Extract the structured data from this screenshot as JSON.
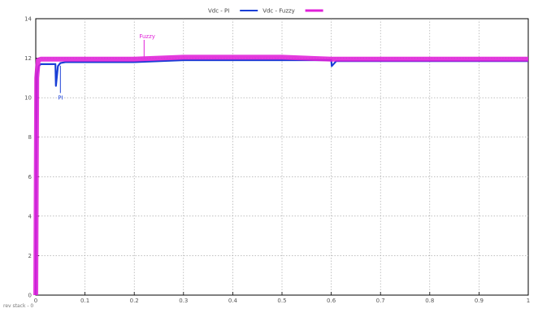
{
  "chart_data": {
    "type": "line",
    "xlim": [
      0,
      1
    ],
    "ylim": [
      0,
      14
    ],
    "x_ticks": [
      0,
      0.1,
      0.2,
      0.3,
      0.4,
      0.5,
      0.6,
      0.7,
      0.8,
      0.9,
      1
    ],
    "y_ticks": [
      0,
      2,
      4,
      6,
      8,
      10,
      12,
      14
    ],
    "x_tick_labels": [
      "0",
      "0.1",
      "0.2",
      "0.3",
      "0.4",
      "0.5",
      "0.6",
      "0.7",
      "0.8",
      "0.9",
      "1"
    ],
    "y_tick_labels": [
      "0",
      "2",
      "4",
      "6",
      "8",
      "10",
      "12",
      "14"
    ],
    "grid": true,
    "legend_position": "top-center",
    "series": [
      {
        "name": "Vdc - PI",
        "color": "#1a3fd6",
        "x": [
          0,
          0.001,
          0.003,
          0.006,
          0.01,
          0.02,
          0.03,
          0.04,
          0.041,
          0.045,
          0.05,
          0.06,
          0.1,
          0.2,
          0.3,
          0.4,
          0.5,
          0.6,
          0.601,
          0.61,
          0.7,
          0.8,
          0.9,
          1
        ],
        "y": [
          0,
          8.2,
          11.2,
          11.6,
          11.7,
          11.7,
          11.7,
          11.7,
          10.6,
          11.6,
          11.75,
          11.8,
          11.8,
          11.8,
          11.9,
          11.9,
          11.9,
          11.9,
          11.6,
          11.85,
          11.85,
          11.85,
          11.85,
          11.85
        ]
      },
      {
        "name": "Vdc - Fuzzy",
        "color": "#e020d8",
        "x": [
          0,
          0.002,
          0.005,
          0.01,
          0.05,
          0.1,
          0.2,
          0.3,
          0.4,
          0.5,
          0.6,
          0.7,
          0.8,
          0.9,
          1
        ],
        "y": [
          0,
          11.0,
          11.9,
          11.95,
          11.95,
          11.95,
          11.95,
          12.05,
          12.05,
          12.05,
          11.95,
          11.95,
          11.95,
          11.95,
          11.95
        ]
      }
    ],
    "annotations": [
      {
        "text": "Fuzzy",
        "x": 0.22,
        "y": 12.6,
        "color": "#e020d8"
      },
      {
        "text": "PI",
        "x": 0.05,
        "y": 10.4,
        "color": "#1a3fd6"
      }
    ]
  },
  "footer": {
    "text": "rev stack - 0"
  }
}
